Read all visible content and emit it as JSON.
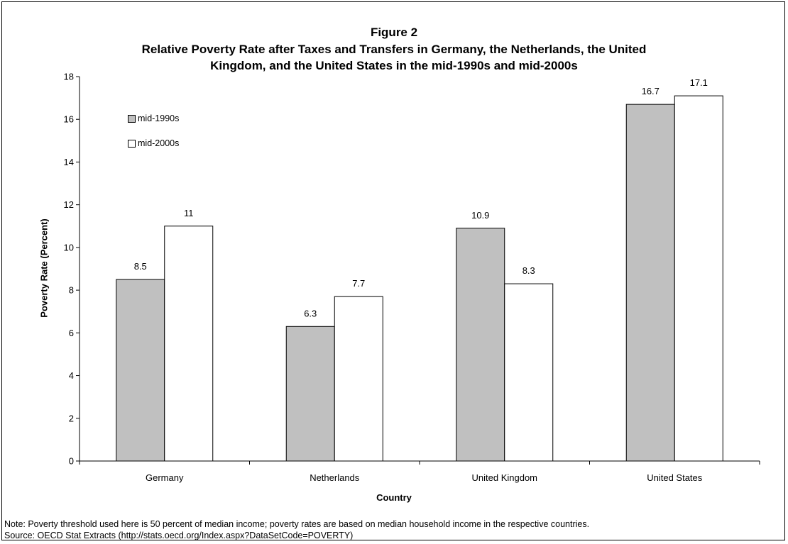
{
  "title": {
    "line1": "Figure 2",
    "line2": "Relative Poverty Rate after Taxes and Transfers in Germany, the Netherlands, the United",
    "line3": "Kingdom, and the United States in the mid-1990s and mid-2000s"
  },
  "notes": {
    "note": "Note: Poverty threshold used here is 50 percent of median income; poverty rates are based on median household income in the respective countries.",
    "source": "Source: OECD Stat Extracts (http://stats.oecd.org/Index.aspx?DataSetCode=POVERTY)"
  },
  "chart_data": {
    "type": "bar",
    "title": "Figure 2 Relative Poverty Rate after Taxes and Transfers in Germany, the Netherlands, the United Kingdom, and the United States in the mid-1990s and mid-2000s",
    "xlabel": "Country",
    "ylabel": "Poverty Rate (Percent)",
    "categories": [
      "Germany",
      "Netherlands",
      "United Kingdom",
      "United States"
    ],
    "series": [
      {
        "name": "mid-1990s",
        "values": [
          8.5,
          6.3,
          10.9,
          16.7
        ],
        "labels": [
          "8.5",
          "6.3",
          "10.9",
          "16.7"
        ],
        "color": "#c0c0c0"
      },
      {
        "name": "mid-2000s",
        "values": [
          11,
          7.7,
          8.3,
          17.1
        ],
        "labels": [
          "11",
          "7.7",
          "8.3",
          "17.1"
        ],
        "color": "#ffffff"
      }
    ],
    "ylim": [
      0,
      18
    ],
    "yticks": [
      0,
      2,
      4,
      6,
      8,
      10,
      12,
      14,
      16,
      18
    ],
    "grid": false,
    "legend": "top-left"
  }
}
